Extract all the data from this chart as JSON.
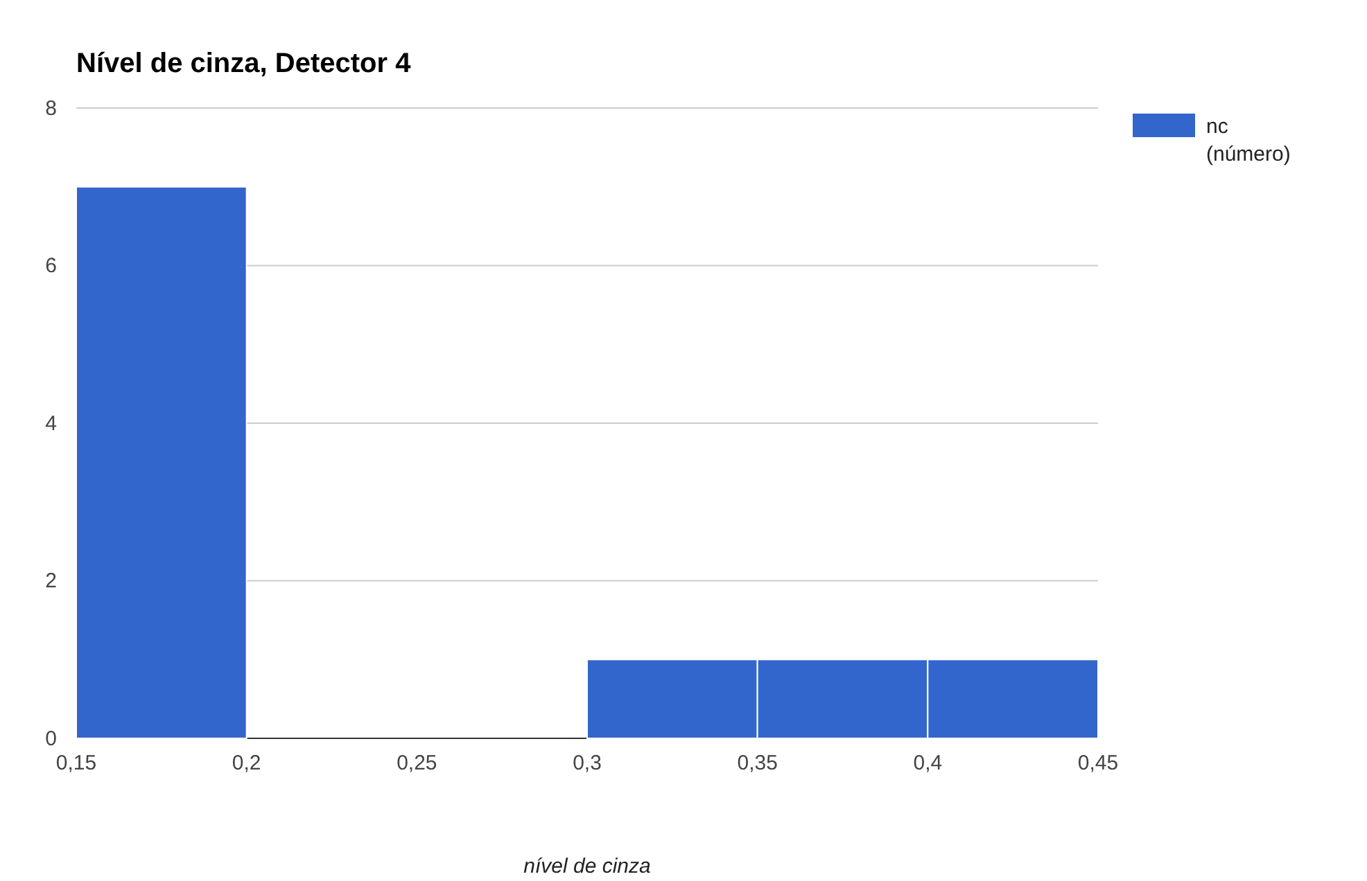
{
  "chart_data": {
    "type": "histogram",
    "title": "Nível de cinza, Detector 4",
    "xlabel": "nível de cinza",
    "bins": [
      0.15,
      0.2,
      0.25,
      0.3,
      0.35,
      0.4,
      0.45
    ],
    "series": [
      {
        "name": "nc (número)",
        "color": "#3366cc",
        "values": [
          7,
          0,
          0,
          1,
          1,
          1
        ]
      }
    ],
    "xlim": [
      0.15,
      0.45
    ],
    "xticks": [
      {
        "value": 0.15,
        "label": "0,15"
      },
      {
        "value": 0.2,
        "label": "0,2"
      },
      {
        "value": 0.25,
        "label": "0,25"
      },
      {
        "value": 0.3,
        "label": "0,3"
      },
      {
        "value": 0.35,
        "label": "0,35"
      },
      {
        "value": 0.4,
        "label": "0,4"
      },
      {
        "value": 0.45,
        "label": "0,45"
      }
    ],
    "ylim": [
      0,
      8
    ],
    "yticks": [
      0,
      2,
      4,
      6,
      8
    ],
    "grid": "y",
    "legend": "top right"
  }
}
